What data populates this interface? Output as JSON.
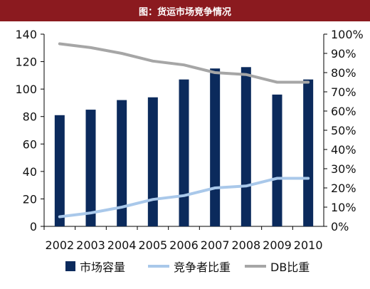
{
  "header": {
    "title": "图：货运市场竞争情况"
  },
  "chart_data": {
    "type": "bar+line",
    "categories": [
      "2002",
      "2003",
      "2004",
      "2005",
      "2006",
      "2007",
      "2008",
      "2009",
      "2010"
    ],
    "left_axis": {
      "min": 0,
      "max": 140,
      "ticks": [
        0,
        20,
        40,
        60,
        80,
        100,
        120,
        140
      ]
    },
    "right_axis": {
      "min": 0,
      "max": 1,
      "ticks": [
        "0%",
        "10%",
        "20%",
        "30%",
        "40%",
        "50%",
        "60%",
        "70%",
        "80%",
        "90%",
        "100%"
      ]
    },
    "series": [
      {
        "name": "市场容量",
        "type": "bar",
        "axis": "left",
        "color": "#0b2a5c",
        "values": [
          81,
          85,
          92,
          94,
          107,
          115,
          116,
          96,
          107
        ]
      },
      {
        "name": "竞争者比重",
        "type": "line",
        "axis": "right",
        "color": "#a9c8ea",
        "values": [
          0.05,
          0.07,
          0.1,
          0.14,
          0.16,
          0.2,
          0.21,
          0.25,
          0.25
        ]
      },
      {
        "name": "DB比重",
        "type": "line",
        "axis": "right",
        "color": "#a6a6a6",
        "values": [
          0.95,
          0.93,
          0.9,
          0.86,
          0.84,
          0.8,
          0.79,
          0.75,
          0.75
        ]
      }
    ],
    "legend_position": "bottom"
  }
}
